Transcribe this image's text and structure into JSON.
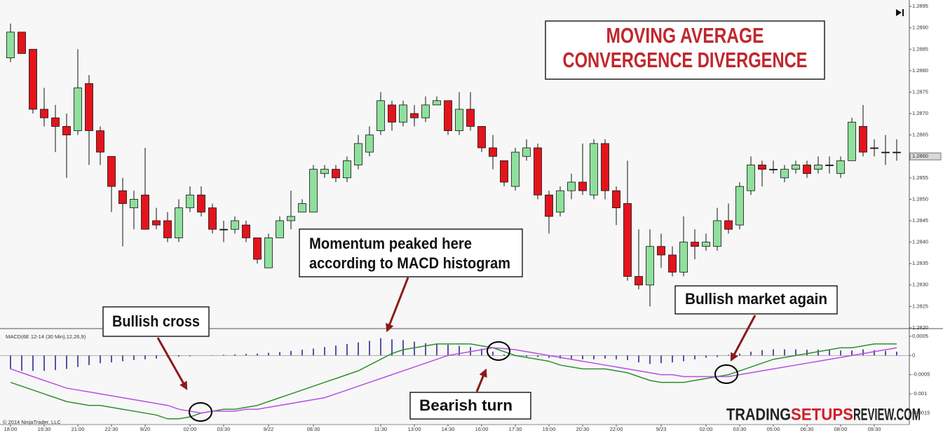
{
  "chart_data": [
    {
      "type": "candlestick",
      "title": [
        "MOVING AVERAGE",
        "CONVERGENCE DIVERGENCE"
      ],
      "annotations": [
        [
          "Momentum peaked here",
          "according to MACD histogram"
        ],
        [
          "Bullish cross"
        ],
        [
          "Bearish turn"
        ],
        [
          "Bullish market again"
        ]
      ],
      "categories": [
        "18:00",
        null,
        null,
        "19:30",
        null,
        null,
        "21:00",
        null,
        null,
        "22:30",
        null,
        null,
        "9/20",
        null,
        null,
        null,
        "02:00",
        null,
        null,
        "03:30",
        null,
        null,
        null,
        "9/22",
        null,
        null,
        null,
        "08:30",
        null,
        null,
        null,
        null,
        null,
        "11:30",
        null,
        null,
        "13:00",
        null,
        null,
        "14:30",
        null,
        null,
        "16:00",
        null,
        null,
        "17:30",
        null,
        null,
        "19:00",
        null,
        null,
        "20:30",
        null,
        null,
        "22:00",
        null,
        null,
        null,
        "9/23",
        null,
        null,
        null,
        "02:00",
        null,
        null,
        "03:30",
        null,
        null,
        "05:00",
        null,
        null,
        "06:30",
        null,
        null,
        "08:00",
        null,
        null,
        "09:30",
        null,
        null
      ],
      "open": [
        1.2883,
        1.2889,
        1.2885,
        1.2871,
        1.2869,
        1.2867,
        1.2866,
        1.2877,
        1.2866,
        1.286,
        1.2852,
        1.2848,
        1.2851,
        1.2845,
        1.2845,
        1.2841,
        1.2848,
        1.2851,
        1.2848,
        1.2843,
        1.2843,
        1.2844,
        1.2841,
        1.2834,
        1.2841,
        1.2845,
        1.2847,
        1.2847,
        1.2856,
        1.2857,
        1.2855,
        1.2858,
        1.2861,
        1.2866,
        1.2872,
        1.2868,
        1.287,
        1.2869,
        1.2872,
        1.2873,
        1.2866,
        1.2871,
        1.2867,
        1.2862,
        1.2859,
        1.2853,
        1.286,
        1.2862,
        1.2851,
        1.2847,
        1.2852,
        1.2854,
        1.2851,
        1.2863,
        1.2852,
        1.2849,
        1.2832,
        1.283,
        1.2839,
        1.2837,
        1.2833,
        1.284,
        1.2839,
        1.2839,
        1.2845,
        1.2844,
        1.2852,
        1.2858,
        1.2857,
        1.2855,
        1.2857,
        1.2858,
        1.2857,
        1.2858,
        1.2856,
        1.2859,
        1.2867,
        1.2862,
        1.2861,
        1.2861
      ],
      "high": [
        1.2891,
        1.2889,
        1.2885,
        1.2876,
        1.2872,
        1.287,
        1.2885,
        1.2879,
        1.2867,
        1.286,
        1.2855,
        1.2852,
        1.2862,
        1.2848,
        1.2847,
        1.285,
        1.2853,
        1.2853,
        1.2849,
        1.2845,
        1.2846,
        1.2845,
        1.2841,
        1.2842,
        1.2846,
        1.2852,
        1.285,
        1.2858,
        1.2858,
        1.2858,
        1.286,
        1.2865,
        1.2867,
        1.2875,
        1.2873,
        1.2873,
        1.2872,
        1.2874,
        1.2874,
        1.2873,
        1.2875,
        1.2875,
        1.2867,
        1.2865,
        1.2859,
        1.2862,
        1.2864,
        1.2863,
        1.2852,
        1.2853,
        1.2856,
        1.2863,
        1.2864,
        1.2864,
        1.2853,
        1.2859,
        1.2843,
        1.2843,
        1.2842,
        1.2839,
        1.2846,
        1.2843,
        1.2842,
        1.2848,
        1.2849,
        1.2854,
        1.286,
        1.2859,
        1.2859,
        1.2858,
        1.2859,
        1.2859,
        1.286,
        1.286,
        1.286,
        1.2869,
        1.2872,
        1.2864,
        1.2865,
        1.2864
      ],
      "low": [
        1.2882,
        1.2884,
        1.287,
        1.2867,
        1.2861,
        1.2855,
        1.2865,
        1.2858,
        1.2858,
        1.2847,
        1.2839,
        1.2843,
        1.2843,
        1.2843,
        1.284,
        1.284,
        1.2847,
        1.2846,
        1.2842,
        1.284,
        1.2842,
        1.284,
        1.2835,
        1.2834,
        1.2841,
        1.2843,
        1.2847,
        1.2847,
        1.2855,
        1.2854,
        1.2854,
        1.2857,
        1.286,
        1.2865,
        1.2866,
        1.2867,
        1.2867,
        1.2868,
        1.2872,
        1.2865,
        1.2865,
        1.2866,
        1.2861,
        1.2857,
        1.2853,
        1.2852,
        1.2859,
        1.285,
        1.2842,
        1.2846,
        1.285,
        1.2851,
        1.285,
        1.285,
        1.2844,
        1.2831,
        1.2829,
        1.2825,
        1.2834,
        1.2832,
        1.2832,
        1.2836,
        1.2838,
        1.2838,
        1.2842,
        1.2843,
        1.2851,
        1.2853,
        1.2856,
        1.2854,
        1.2856,
        1.2855,
        1.2856,
        1.2856,
        1.2855,
        1.2859,
        1.286,
        1.286,
        1.2858,
        1.2859
      ],
      "close": [
        1.2889,
        1.2884,
        1.2871,
        1.2869,
        1.2867,
        1.2865,
        1.2876,
        1.2866,
        1.2861,
        1.2853,
        1.2849,
        1.285,
        1.2843,
        1.2844,
        1.2841,
        1.2848,
        1.2851,
        1.2847,
        1.2843,
        1.2843,
        1.2845,
        1.2841,
        1.2836,
        1.2841,
        1.2845,
        1.2846,
        1.2849,
        1.2857,
        1.2857,
        1.2855,
        1.2859,
        1.2863,
        1.2865,
        1.2873,
        1.2868,
        1.2872,
        1.2869,
        1.2872,
        1.2873,
        1.2866,
        1.2871,
        1.2867,
        1.2862,
        1.286,
        1.2854,
        1.2861,
        1.2862,
        1.2851,
        1.2846,
        1.2852,
        1.2854,
        1.2852,
        1.2863,
        1.2852,
        1.2848,
        1.2832,
        1.283,
        1.2839,
        1.2837,
        1.2833,
        1.284,
        1.2839,
        1.284,
        1.2845,
        1.2843,
        1.2853,
        1.2858,
        1.2857,
        1.2857,
        1.2857,
        1.2858,
        1.2856,
        1.2858,
        1.2858,
        1.2859,
        1.2868,
        1.2861,
        1.2862,
        1.2861,
        1.2861
      ],
      "up_color": "#8fe09c",
      "down_color": "#e3141c",
      "ylim": [
        1.28195,
        1.2896
      ],
      "yticks": [
        {
          "value": 1.282,
          "label": "1.2820"
        },
        1.2825,
        {
          "value": 1.283,
          "label": "1.2830"
        },
        1.2835,
        {
          "value": 1.284,
          "label": "1.2840"
        },
        1.2845,
        {
          "value": 1.285,
          "label": "1.2850"
        },
        1.2855,
        {
          "value": 1.286,
          "label": "1.2860"
        },
        1.2865,
        {
          "value": 1.287,
          "label": "1.2870"
        },
        1.2875,
        {
          "value": 1.288,
          "label": "1.2880"
        },
        1.2885,
        {
          "value": 1.289,
          "label": "1.2890"
        },
        1.2895
      ],
      "last_price": {
        "value": 1.286,
        "label": "1.2860"
      }
    },
    {
      "type": "macd",
      "label": "MACD(6E 12-14 (30 Min),12,26,9)",
      "copyright": "© 2014 NinjaTrader, LLC",
      "series": [
        {
          "kind": "histogram",
          "color": "#2b2b8c",
          "values": [
            -0.00035,
            -0.0004,
            -0.0004,
            -0.0004,
            -0.00038,
            -0.00035,
            -0.0003,
            -0.00025,
            -0.0002,
            -0.00018,
            -0.00015,
            -0.00012,
            -0.0001,
            -8e-05,
            -5e-05,
            -3e-05,
            -2e-05,
            0,
            1e-05,
            2e-05,
            3e-05,
            4e-05,
            5e-05,
            7e-05,
            9e-05,
            0.00012,
            0.00015,
            0.00018,
            0.00022,
            0.00026,
            0.0003,
            0.00034,
            0.00038,
            0.00045,
            0.00042,
            0.0004,
            0.00036,
            0.00032,
            0.0003,
            0.00028,
            0.00025,
            0.00022,
            0.00018,
            0.0001,
            3e-05,
            -2e-05,
            -3e-05,
            -4e-05,
            -6e-05,
            -8e-05,
            -0.0001,
            -0.0001,
            -0.0001,
            -8e-05,
            -0.0001,
            -0.00012,
            -0.00018,
            -0.00022,
            -0.0002,
            -0.00018,
            -0.00015,
            -0.0001,
            -6e-05,
            -4e-05,
            2e-05,
            5e-05,
            0.0001,
            0.00014,
            0.00016,
            0.00016,
            0.00016,
            0.00015,
            0.00015,
            0.00014,
            0.00013,
            0.00013,
            0.00016,
            0.00014,
            0.00012,
            0.0001
          ]
        },
        {
          "kind": "line",
          "color": "#2f8f2f",
          "values": [
            -0.0007,
            -0.0008,
            -0.0009,
            -0.001,
            -0.0011,
            -0.0012,
            -0.00125,
            -0.0013,
            -0.0013,
            -0.00135,
            -0.0014,
            -0.00145,
            -0.0015,
            -0.00155,
            -0.00165,
            -0.00165,
            -0.0016,
            -0.0015,
            -0.00145,
            -0.0014,
            -0.0014,
            -0.00135,
            -0.0013,
            -0.0012,
            -0.0011,
            -0.001,
            -0.0009,
            -0.0008,
            -0.0007,
            -0.0006,
            -0.0005,
            -0.0004,
            -0.00025,
            -0.0001,
            5e-05,
            0.00015,
            0.0002,
            0.00025,
            0.0003,
            0.0003,
            0.0003,
            0.0003,
            0.00025,
            0.0002,
            0.0001,
            0,
            -5e-05,
            -0.0001,
            -0.00015,
            -0.00025,
            -0.0003,
            -0.00035,
            -0.00035,
            -0.00035,
            -0.0004,
            -0.00045,
            -0.00055,
            -0.00065,
            -0.0007,
            -0.0007,
            -0.0007,
            -0.00065,
            -0.0006,
            -0.00055,
            -0.0005,
            -0.0004,
            -0.0003,
            -0.0002,
            -0.0001,
            -5e-05,
            0,
            5e-05,
            0.0001,
            0.00015,
            0.0002,
            0.0002,
            0.00025,
            0.0003,
            0.0003,
            0.0003
          ]
        },
        {
          "kind": "line",
          "color": "#b64fe6",
          "values": [
            -0.00035,
            -0.00045,
            -0.00055,
            -0.00065,
            -0.00075,
            -0.00085,
            -0.0009,
            -0.00095,
            -0.001,
            -0.00105,
            -0.0011,
            -0.00115,
            -0.0012,
            -0.00125,
            -0.0013,
            -0.0014,
            -0.00145,
            -0.0015,
            -0.00145,
            -0.00145,
            -0.00145,
            -0.0014,
            -0.0014,
            -0.00135,
            -0.0013,
            -0.00125,
            -0.0012,
            -0.00115,
            -0.0011,
            -0.001,
            -0.0009,
            -0.0008,
            -0.0007,
            -0.0006,
            -0.0005,
            -0.0004,
            -0.0003,
            -0.0002,
            -0.0001,
            0,
            5e-05,
            0.0001,
            0.00015,
            0.0002,
            0.00018,
            0.00015,
            0.0001,
            5e-05,
            0,
            -5e-05,
            -0.0001,
            -0.00015,
            -0.0002,
            -0.00025,
            -0.0003,
            -0.00035,
            -0.0004,
            -0.00045,
            -0.0005,
            -0.0005,
            -0.00055,
            -0.00055,
            -0.00055,
            -0.00055,
            -0.00055,
            -0.0005,
            -0.00045,
            -0.0004,
            -0.00035,
            -0.0003,
            -0.00025,
            -0.0002,
            -0.00015,
            -0.0001,
            -5e-05,
            0,
            5e-05,
            0.0001,
            0.00015,
            0.0002
          ]
        }
      ],
      "ylim": [
        -0.0018,
        0.0007
      ],
      "yticks": [
        0.0005,
        0,
        -0.0005,
        -0.001,
        -0.0015
      ]
    }
  ],
  "watermark": [
    "TRADING",
    "SETUPS",
    "REVIEW.COM"
  ]
}
